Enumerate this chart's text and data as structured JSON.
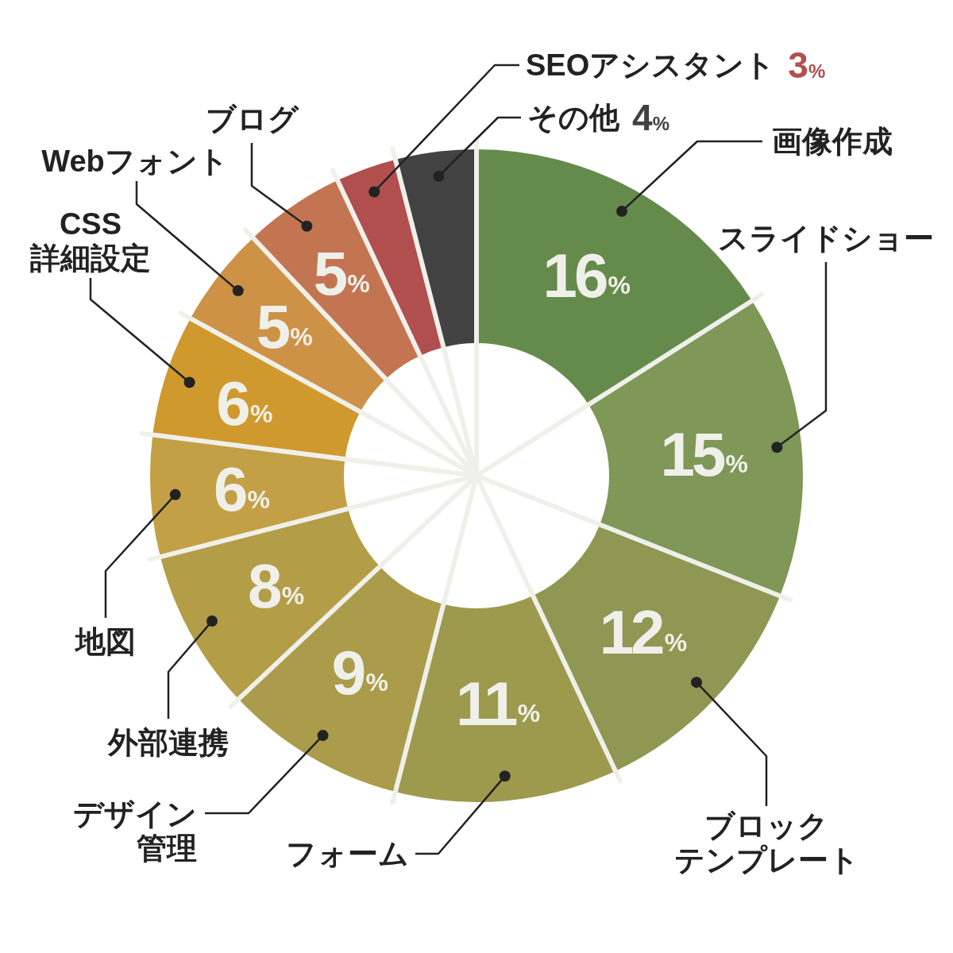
{
  "chart_data": {
    "type": "donut",
    "categories": [
      "画像作成",
      "スライドショー",
      "ブロックテンプレート",
      "フォーム",
      "デザイン管理",
      "外部連携",
      "地図",
      "CSS\n詳細設定",
      "Webフォント",
      "ブログ",
      "SEOアシスタント",
      "その他"
    ],
    "values": [
      16,
      15,
      12,
      11,
      9,
      8,
      6,
      6,
      5,
      5,
      3,
      4
    ],
    "value_labels": [
      "16%",
      "15%",
      "12%",
      "11%",
      "9%",
      "8%",
      "6%",
      "6%",
      "5%",
      "5%",
      "3%",
      "4%"
    ],
    "colors": [
      "#658b4c",
      "#7f9757",
      "#8e9852",
      "#9d9a4e",
      "#aa9c4b",
      "#b49d47",
      "#c3a045",
      "#cf992d",
      "#cd9245",
      "#c37552",
      "#b14f4f",
      "#424242"
    ]
  }
}
